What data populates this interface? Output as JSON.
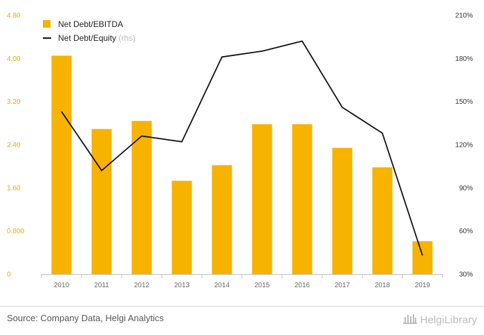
{
  "chart_data": {
    "type": "bar+line",
    "categories": [
      "2010",
      "2011",
      "2012",
      "2013",
      "2014",
      "2015",
      "2016",
      "2017",
      "2018",
      "2019"
    ],
    "series": [
      {
        "name": "Net Debt/EBITDA",
        "type": "bar",
        "axis": "left",
        "color": "#f8b200",
        "values": [
          4.05,
          2.69,
          2.84,
          1.73,
          2.02,
          2.78,
          2.78,
          2.34,
          1.98,
          0.61
        ]
      },
      {
        "name": "Net Debt/Equity",
        "suffix": "(rhs)",
        "type": "line",
        "axis": "right",
        "color": "#111111",
        "values": [
          143,
          102,
          126,
          122,
          181,
          185,
          192,
          146,
          128,
          43
        ]
      }
    ],
    "left_axis": {
      "min": 0,
      "max": 4.8,
      "ticks": [
        "0",
        "0.800",
        "1.60",
        "2.40",
        "3.20",
        "4.00",
        "4.80"
      ],
      "tick_values": [
        0,
        0.8,
        1.6,
        2.4,
        3.2,
        4.0,
        4.8
      ]
    },
    "right_axis": {
      "min": 30,
      "max": 210,
      "ticks": [
        "30%",
        "60%",
        "90%",
        "120%",
        "150%",
        "180%",
        "210%"
      ],
      "tick_values": [
        30,
        60,
        90,
        120,
        150,
        180,
        210
      ]
    },
    "legend_position": "top-left",
    "grid": false
  },
  "legend": {
    "bar_label": "Net Debt/EBITDA",
    "line_label": "Net Debt/Equity",
    "line_suffix": "(rhs)"
  },
  "footer": {
    "source": "Source: Company Data, Helgi Analytics",
    "brand": "HelgiLibrary",
    "brand_icon": "library-building-icon"
  }
}
